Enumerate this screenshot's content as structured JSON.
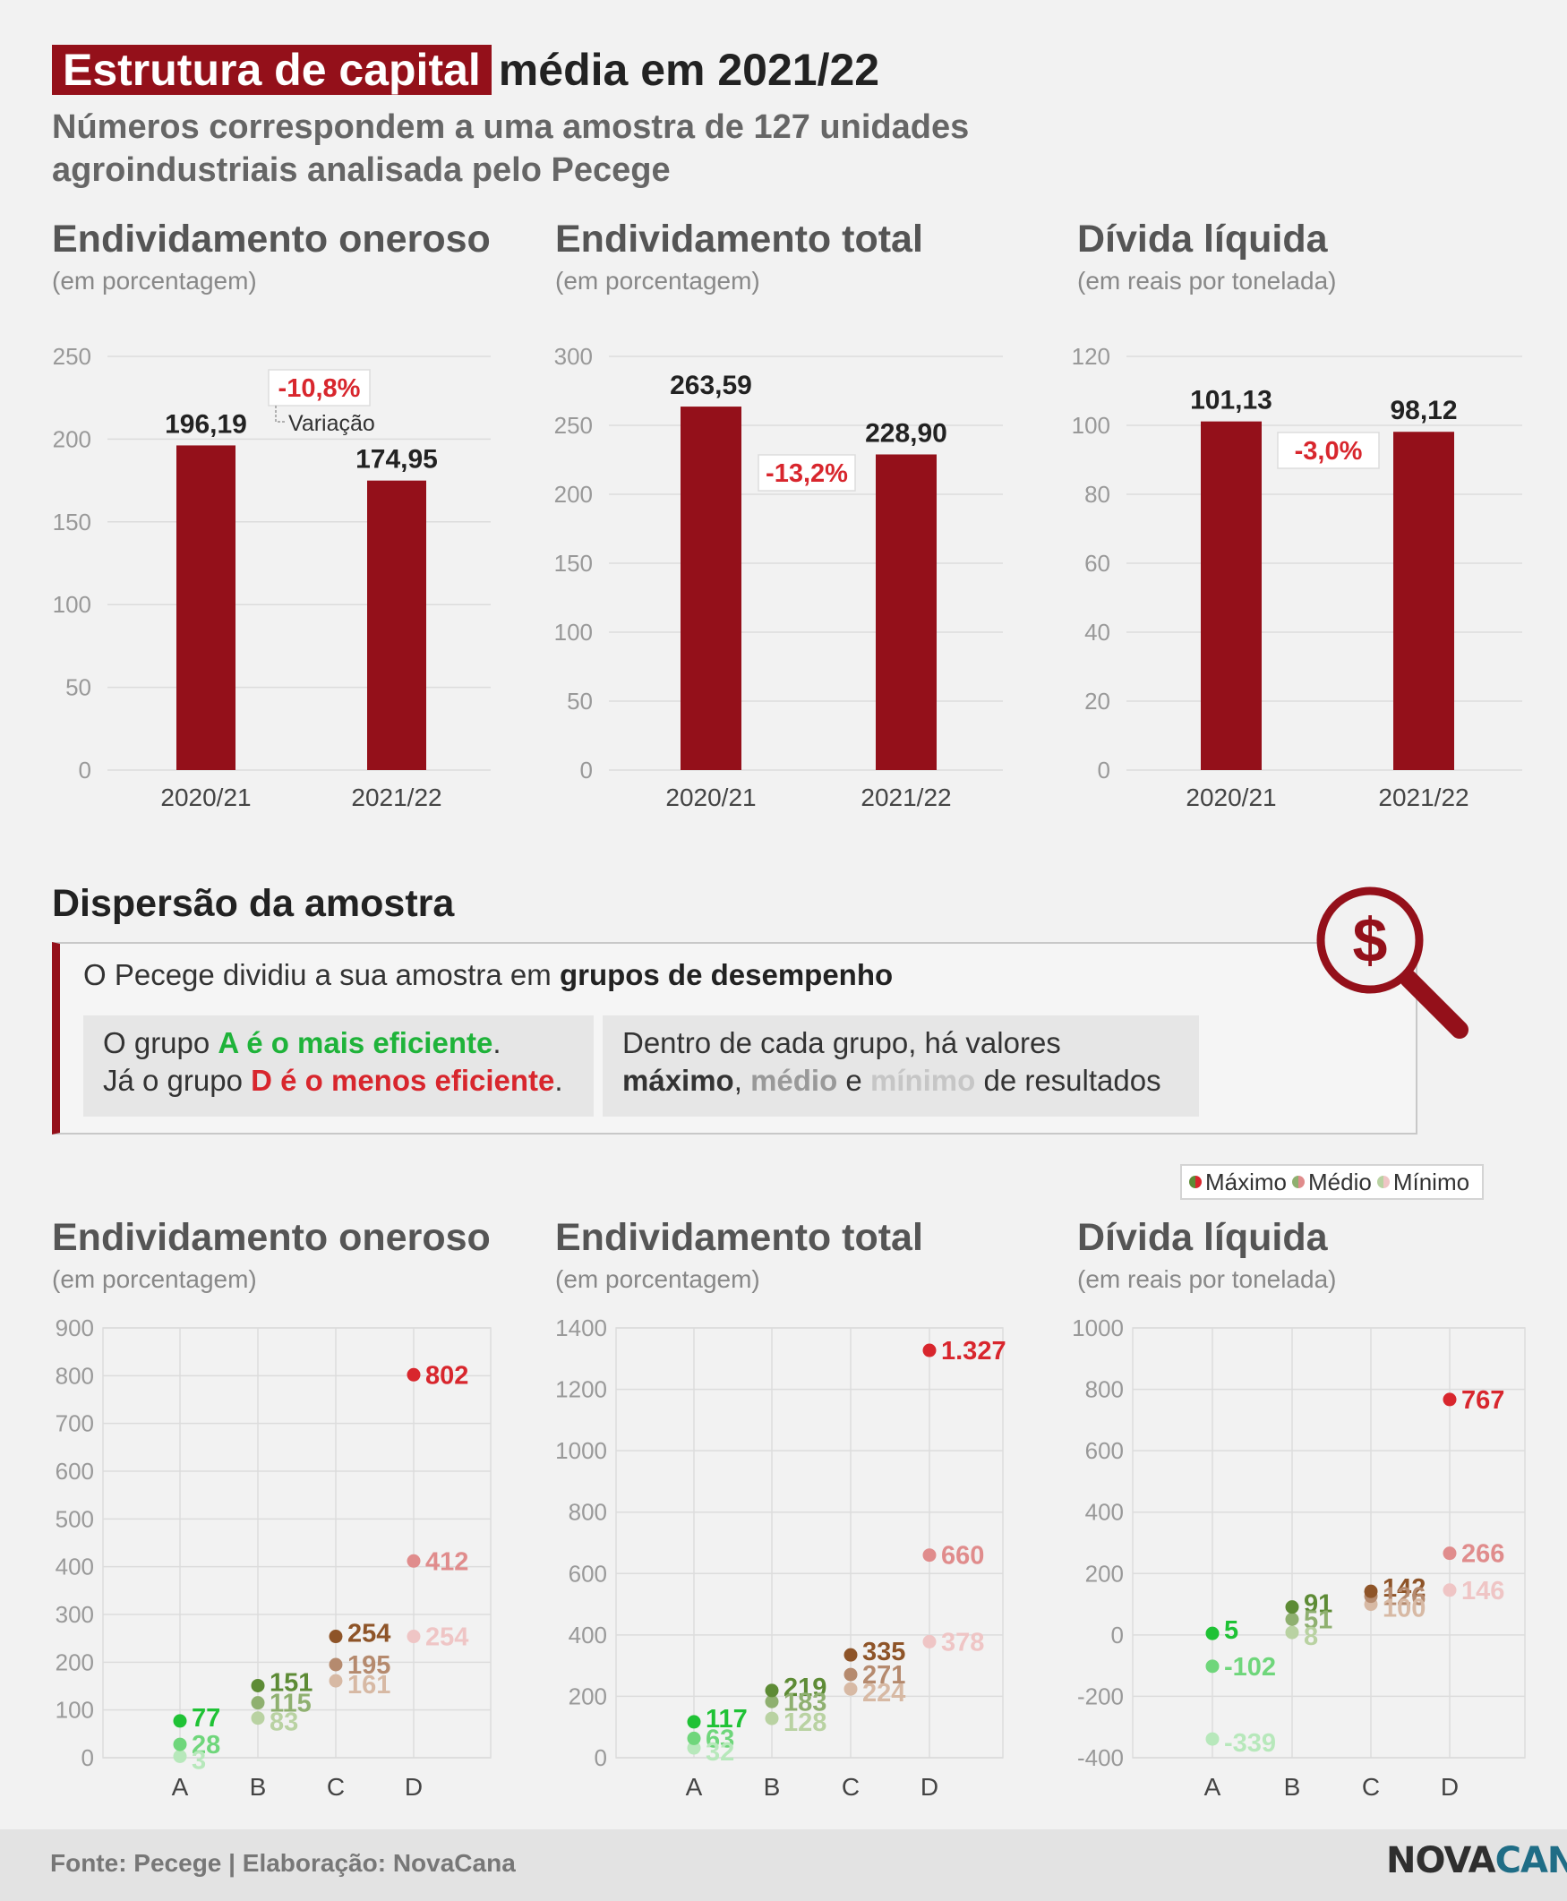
{
  "header": {
    "title_highlight": "Estrutura de capital",
    "title_rest": "média em 2021/22",
    "subtitle": "Números correspondem a uma amostra de 127 unidades agroindustriais analisada pelo Pecege"
  },
  "colors": {
    "bar": "#94101a",
    "variation": "#d8262d",
    "A_max": "#1fc235",
    "A_med": "#6fd67b",
    "A_min": "#b7e8bb",
    "B_max": "#5d8b35",
    "B_med": "#8fb070",
    "B_min": "#b9d2a2",
    "C_max": "#8e5428",
    "C_med": "#b58a6e",
    "C_min": "#d7b9a4",
    "D_max": "#d8262d",
    "D_med": "#e08c8c",
    "D_min": "#efc5c5"
  },
  "bar_titles": [
    {
      "title": "Endividamento oneroso",
      "unit": "(em porcentagem)"
    },
    {
      "title": "Endividamento total",
      "unit": "(em porcentagem)"
    },
    {
      "title": "Dívida líquida",
      "unit": "(em reais por tonelada)"
    }
  ],
  "chart_data": [
    {
      "type": "bar",
      "title": "Endividamento oneroso",
      "subtitle": "(em porcentagem)",
      "categories": [
        "2020/21",
        "2021/22"
      ],
      "values": [
        196.19,
        174.95
      ],
      "value_labels": [
        "196,19",
        "174,95"
      ],
      "variation": "-10,8%",
      "variation_note": "Variação",
      "ylim": [
        0,
        250
      ],
      "yticks": [
        0,
        50,
        100,
        150,
        200,
        250
      ],
      "grid": true
    },
    {
      "type": "bar",
      "title": "Endividamento total",
      "subtitle": "(em porcentagem)",
      "categories": [
        "2020/21",
        "2021/22"
      ],
      "values": [
        263.59,
        228.9
      ],
      "value_labels": [
        "263,59",
        "228,90"
      ],
      "variation": "-13,2%",
      "ylim": [
        0,
        300
      ],
      "yticks": [
        0,
        50,
        100,
        150,
        200,
        250,
        300
      ],
      "grid": true
    },
    {
      "type": "bar",
      "title": "Dívida líquida",
      "subtitle": "(em reais por tonelada)",
      "categories": [
        "2020/21",
        "2021/22"
      ],
      "values": [
        101.13,
        98.12
      ],
      "value_labels": [
        "101,13",
        "98,12"
      ],
      "variation": "-3,0%",
      "ylim": [
        0,
        120
      ],
      "yticks": [
        0,
        20,
        40,
        60,
        80,
        100,
        120
      ],
      "grid": true
    },
    {
      "type": "scatter",
      "title": "Endividamento oneroso",
      "subtitle": "(em porcentagem)",
      "categories": [
        "A",
        "B",
        "C",
        "D"
      ],
      "series": [
        {
          "name": "Máximo",
          "values": [
            77,
            151,
            254,
            802
          ],
          "labels": [
            "77",
            "151",
            "254",
            "802"
          ]
        },
        {
          "name": "Médio",
          "values": [
            28,
            115,
            195,
            412
          ],
          "labels": [
            "28",
            "115",
            "195",
            "412"
          ]
        },
        {
          "name": "Mínimo",
          "values": [
            3,
            83,
            161,
            254
          ],
          "labels": [
            "3",
            "83",
            "161",
            "254"
          ]
        }
      ],
      "ylim": [
        0,
        900
      ],
      "yticks": [
        0,
        100,
        200,
        300,
        400,
        500,
        600,
        700,
        800,
        900
      ],
      "grid": true
    },
    {
      "type": "scatter",
      "title": "Endividamento total",
      "subtitle": "(em porcentagem)",
      "categories": [
        "A",
        "B",
        "C",
        "D"
      ],
      "series": [
        {
          "name": "Máximo",
          "values": [
            117,
            219,
            335,
            1327
          ],
          "labels": [
            "117",
            "219",
            "335",
            "1.327"
          ]
        },
        {
          "name": "Médio",
          "values": [
            63,
            183,
            271,
            660
          ],
          "labels": [
            "63",
            "183",
            "271",
            "660"
          ]
        },
        {
          "name": "Mínimo",
          "values": [
            32,
            128,
            224,
            378
          ],
          "labels": [
            "32",
            "128",
            "224",
            "378"
          ]
        }
      ],
      "ylim": [
        0,
        1400
      ],
      "yticks": [
        0,
        200,
        400,
        600,
        800,
        1000,
        1200,
        1400
      ],
      "grid": true
    },
    {
      "type": "scatter",
      "title": "Dívida líquida",
      "subtitle": "(em reais por tonelada)",
      "categories": [
        "A",
        "B",
        "C",
        "D"
      ],
      "series": [
        {
          "name": "Máximo",
          "values": [
            5,
            91,
            142,
            767
          ],
          "labels": [
            "5",
            "91",
            "142",
            "767"
          ]
        },
        {
          "name": "Médio",
          "values": [
            -102,
            51,
            126,
            266
          ],
          "labels": [
            "-102",
            "51",
            "126",
            "266"
          ]
        },
        {
          "name": "Mínimo",
          "values": [
            -339,
            8,
            100,
            146
          ],
          "labels": [
            "-339",
            "8",
            "100",
            "146"
          ]
        }
      ],
      "ylim": [
        -400,
        1000
      ],
      "yticks": [
        -400,
        -200,
        0,
        200,
        400,
        600,
        800,
        1000
      ],
      "grid": true
    }
  ],
  "dispersion": {
    "title": "Dispersão da amostra",
    "intro": "O Pecege dividiu a sua amostra em",
    "intro_bold": "grupos de desempenho",
    "groups": {
      "l1_pre": "O grupo",
      "l1_bold": "A é o mais eficiente",
      "l1_post": ".",
      "l2_pre": "Já o grupo",
      "l2_bold": "D é o menos eficiente",
      "l2_post": "."
    },
    "values": {
      "l1": "Dentro de cada grupo, há valores",
      "max": "máximo",
      "sep": ",",
      "med": "médio",
      "and": "e",
      "min": "mínimo",
      "post": "de resultados"
    },
    "icon": "magnifier-dollar-icon",
    "icon_symbol": "$"
  },
  "legend": {
    "max": "Máximo",
    "med": "Médio",
    "min": "Mínimo"
  },
  "footer": {
    "source": "Fonte: Pecege | Elaboração: NovaCana",
    "logo_a": "NOVA",
    "logo_b": "CANA"
  }
}
